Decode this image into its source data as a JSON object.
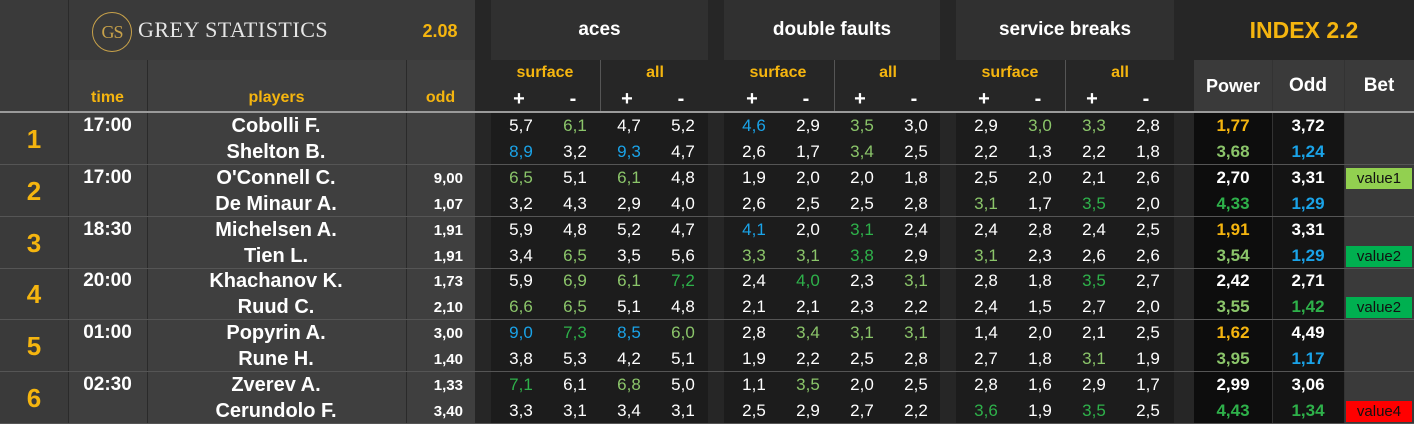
{
  "header": {
    "logo_text": "GS",
    "brand": "GREY STATISTICS",
    "version": "2.08",
    "groups": [
      "aces",
      "double faults",
      "service breaks"
    ],
    "index_title": "INDEX 2.2",
    "sub_surface": "surface",
    "sub_all": "all",
    "plus": "+",
    "minus": "-",
    "col_time": "time",
    "col_players": "players",
    "col_odd": "odd",
    "col_power": "Power",
    "col_odd2": "Odd",
    "col_bet": "Bet"
  },
  "colors": {
    "white": "#ffffff",
    "blue": "#1aa3e8",
    "lightgreen": "#8bc56a",
    "green": "#2eb14a",
    "yellow": "#f5b50f",
    "value_lightgreen": "#92d050",
    "value_green": "#00b050",
    "value_red": "#ff0000"
  },
  "matches": [
    {
      "number": "1",
      "time": "17:00",
      "players": [
        {
          "name": "Cobolli F.",
          "odd": "",
          "vals": [
            "5,7",
            "6,1",
            "4,7",
            "5,2",
            "4,6",
            "2,9",
            "3,5",
            "3,0",
            "2,9",
            "3,0",
            "3,3",
            "2,8"
          ],
          "colors": [
            "w",
            "lg",
            "w",
            "w",
            "b",
            "w",
            "lg",
            "w",
            "w",
            "lg",
            "lg",
            "w"
          ],
          "power": "1,77",
          "power_color": "y",
          "index_odd": "3,72",
          "index_odd_color": "w",
          "bet": "",
          "bet_color": ""
        },
        {
          "name": "Shelton B.",
          "odd": "",
          "vals": [
            "8,9",
            "3,2",
            "9,3",
            "4,7",
            "2,6",
            "1,7",
            "3,4",
            "2,5",
            "2,2",
            "1,3",
            "2,2",
            "1,8"
          ],
          "colors": [
            "b",
            "w",
            "b",
            "w",
            "w",
            "w",
            "lg",
            "w",
            "w",
            "w",
            "w",
            "w"
          ],
          "power": "3,68",
          "power_color": "lg",
          "index_odd": "1,24",
          "index_odd_color": "b",
          "bet": "",
          "bet_color": ""
        }
      ]
    },
    {
      "number": "2",
      "time": "17:00",
      "players": [
        {
          "name": "O'Connell C.",
          "odd": "9,00",
          "vals": [
            "6,5",
            "5,1",
            "6,1",
            "4,8",
            "1,9",
            "2,0",
            "2,0",
            "1,8",
            "2,5",
            "2,0",
            "2,1",
            "2,6"
          ],
          "colors": [
            "lg",
            "w",
            "lg",
            "w",
            "w",
            "w",
            "w",
            "w",
            "w",
            "w",
            "w",
            "w"
          ],
          "power": "2,70",
          "power_color": "w",
          "index_odd": "3,31",
          "index_odd_color": "w",
          "bet": "value1",
          "bet_color": "vlg"
        },
        {
          "name": "De Minaur A.",
          "odd": "1,07",
          "vals": [
            "3,2",
            "4,3",
            "2,9",
            "4,0",
            "2,6",
            "2,5",
            "2,5",
            "2,8",
            "3,1",
            "1,7",
            "3,5",
            "2,0"
          ],
          "colors": [
            "w",
            "w",
            "w",
            "w",
            "w",
            "w",
            "w",
            "w",
            "lg",
            "w",
            "g",
            "w"
          ],
          "power": "4,33",
          "power_color": "g",
          "index_odd": "1,29",
          "index_odd_color": "b",
          "bet": "",
          "bet_color": ""
        }
      ]
    },
    {
      "number": "3",
      "time": "18:30",
      "players": [
        {
          "name": "Michelsen A.",
          "odd": "1,91",
          "vals": [
            "5,9",
            "4,8",
            "5,2",
            "4,7",
            "4,1",
            "2,0",
            "3,1",
            "2,4",
            "2,4",
            "2,8",
            "2,4",
            "2,5"
          ],
          "colors": [
            "w",
            "w",
            "w",
            "w",
            "b",
            "w",
            "g",
            "w",
            "w",
            "w",
            "w",
            "w"
          ],
          "power": "1,91",
          "power_color": "y",
          "index_odd": "3,31",
          "index_odd_color": "w",
          "bet": "",
          "bet_color": ""
        },
        {
          "name": "Tien L.",
          "odd": "1,91",
          "vals": [
            "3,4",
            "6,5",
            "3,5",
            "5,6",
            "3,3",
            "3,1",
            "3,8",
            "2,9",
            "3,1",
            "2,3",
            "2,6",
            "2,6"
          ],
          "colors": [
            "w",
            "lg",
            "w",
            "w",
            "lg",
            "lg",
            "g",
            "w",
            "lg",
            "w",
            "w",
            "w"
          ],
          "power": "3,54",
          "power_color": "lg",
          "index_odd": "1,29",
          "index_odd_color": "b",
          "bet": "value2",
          "bet_color": "vg"
        }
      ]
    },
    {
      "number": "4",
      "time": "20:00",
      "players": [
        {
          "name": "Khachanov K.",
          "odd": "1,73",
          "vals": [
            "5,9",
            "6,9",
            "6,1",
            "7,2",
            "2,4",
            "4,0",
            "2,3",
            "3,1",
            "2,8",
            "1,8",
            "3,5",
            "2,7"
          ],
          "colors": [
            "w",
            "lg",
            "lg",
            "g",
            "w",
            "g",
            "w",
            "lg",
            "w",
            "w",
            "g",
            "w"
          ],
          "power": "2,42",
          "power_color": "w",
          "index_odd": "2,71",
          "index_odd_color": "w",
          "bet": "",
          "bet_color": ""
        },
        {
          "name": "Ruud C.",
          "odd": "2,10",
          "vals": [
            "6,6",
            "6,5",
            "5,1",
            "4,8",
            "2,1",
            "2,1",
            "2,3",
            "2,2",
            "2,4",
            "1,5",
            "2,7",
            "2,0"
          ],
          "colors": [
            "lg",
            "lg",
            "w",
            "w",
            "w",
            "w",
            "w",
            "w",
            "w",
            "w",
            "w",
            "w"
          ],
          "power": "3,55",
          "power_color": "lg",
          "index_odd": "1,42",
          "index_odd_color": "g",
          "bet": "value2",
          "bet_color": "vg"
        }
      ]
    },
    {
      "number": "5",
      "time": "01:00",
      "players": [
        {
          "name": "Popyrin A.",
          "odd": "3,00",
          "vals": [
            "9,0",
            "7,3",
            "8,5",
            "6,0",
            "2,8",
            "3,4",
            "3,1",
            "3,1",
            "1,4",
            "2,0",
            "2,1",
            "2,5"
          ],
          "colors": [
            "b",
            "g",
            "b",
            "lg",
            "w",
            "lg",
            "lg",
            "lg",
            "w",
            "w",
            "w",
            "w"
          ],
          "power": "1,62",
          "power_color": "y",
          "index_odd": "4,49",
          "index_odd_color": "w",
          "bet": "",
          "bet_color": ""
        },
        {
          "name": "Rune H.",
          "odd": "1,40",
          "vals": [
            "3,8",
            "5,3",
            "4,2",
            "5,1",
            "1,9",
            "2,2",
            "2,5",
            "2,8",
            "2,7",
            "1,8",
            "3,1",
            "1,9"
          ],
          "colors": [
            "w",
            "w",
            "w",
            "w",
            "w",
            "w",
            "w",
            "w",
            "w",
            "w",
            "lg",
            "w"
          ],
          "power": "3,95",
          "power_color": "lg",
          "index_odd": "1,17",
          "index_odd_color": "b",
          "bet": "",
          "bet_color": ""
        }
      ]
    },
    {
      "number": "6",
      "time": "02:30",
      "players": [
        {
          "name": "Zverev A.",
          "odd": "1,33",
          "vals": [
            "7,1",
            "6,1",
            "6,8",
            "5,0",
            "1,1",
            "3,5",
            "2,0",
            "2,5",
            "2,8",
            "1,6",
            "2,9",
            "1,7"
          ],
          "colors": [
            "g",
            "w",
            "lg",
            "w",
            "w",
            "lg",
            "w",
            "w",
            "w",
            "w",
            "w",
            "w"
          ],
          "power": "2,99",
          "power_color": "w",
          "index_odd": "3,06",
          "index_odd_color": "w",
          "bet": "",
          "bet_color": ""
        },
        {
          "name": "Cerundolo F.",
          "odd": "3,40",
          "vals": [
            "3,3",
            "3,1",
            "3,4",
            "3,1",
            "2,5",
            "2,9",
            "2,7",
            "2,2",
            "3,6",
            "1,9",
            "3,5",
            "2,5"
          ],
          "colors": [
            "w",
            "w",
            "w",
            "w",
            "w",
            "w",
            "w",
            "w",
            "g",
            "w",
            "g",
            "w"
          ],
          "power": "4,43",
          "power_color": "g",
          "index_odd": "1,34",
          "index_odd_color": "g",
          "bet": "value4",
          "bet_color": "vr"
        }
      ]
    }
  ]
}
